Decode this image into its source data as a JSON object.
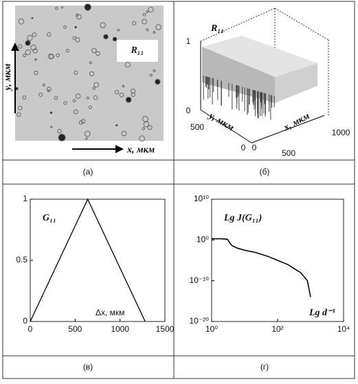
{
  "panels": [
    {
      "caption": "(a)",
      "label": "R₁₁",
      "y_axis": "y, мкм",
      "x_axis": "x, мкм"
    },
    {
      "caption": "(б)",
      "label": "R₁₁",
      "z_ticks": [
        0,
        1
      ],
      "y_axis": "y, мкм",
      "y_ticks": [
        0,
        500
      ],
      "x_axis": "x, мкм",
      "x_ticks": [
        0,
        500,
        1000
      ]
    },
    {
      "caption": "(в)",
      "chart": {
        "type": "line",
        "title": "G₁₁",
        "xlabel": "Δx, мкм",
        "color": "#000000",
        "x": [
          0,
          640,
          1280
        ],
        "values": [
          0,
          1,
          0
        ],
        "xlim": [
          0,
          1500
        ],
        "ylim": [
          0,
          1
        ],
        "xticks": [
          0,
          500,
          1000,
          1500
        ],
        "yticks": [
          0,
          0.5,
          1
        ]
      }
    },
    {
      "caption": "(г)",
      "chart": {
        "type": "line",
        "title": "Lg J(G₁₁)",
        "xlabel": "Lg d⁻¹",
        "color": "#000000",
        "xscale": "log",
        "yscale": "log",
        "x": [
          1,
          2,
          3,
          4,
          6,
          10,
          20,
          50,
          100,
          200,
          500,
          800,
          1000
        ],
        "values": [
          2,
          2,
          1.5,
          0.05,
          0.01,
          0.003,
          0.001,
          0.0001,
          1e-05,
          1e-06,
          1e-08,
          1e-10,
          1e-14
        ],
        "xlim": [
          1,
          10000
        ],
        "ylim": [
          1e-20,
          10000000000
        ],
        "xticks": [
          {
            "value": 1,
            "label": "10⁰"
          },
          {
            "value": 100,
            "label": "10²"
          },
          {
            "value": 10000,
            "label": "10⁴"
          }
        ],
        "yticks": [
          {
            "value": 1e-20,
            "label": "10⁻²⁰"
          },
          {
            "value": 1e-10,
            "label": "10⁻¹⁰"
          },
          {
            "value": 1,
            "label": "10⁰"
          },
          {
            "value": 10000000000,
            "label": "10¹⁰"
          }
        ]
      }
    }
  ]
}
